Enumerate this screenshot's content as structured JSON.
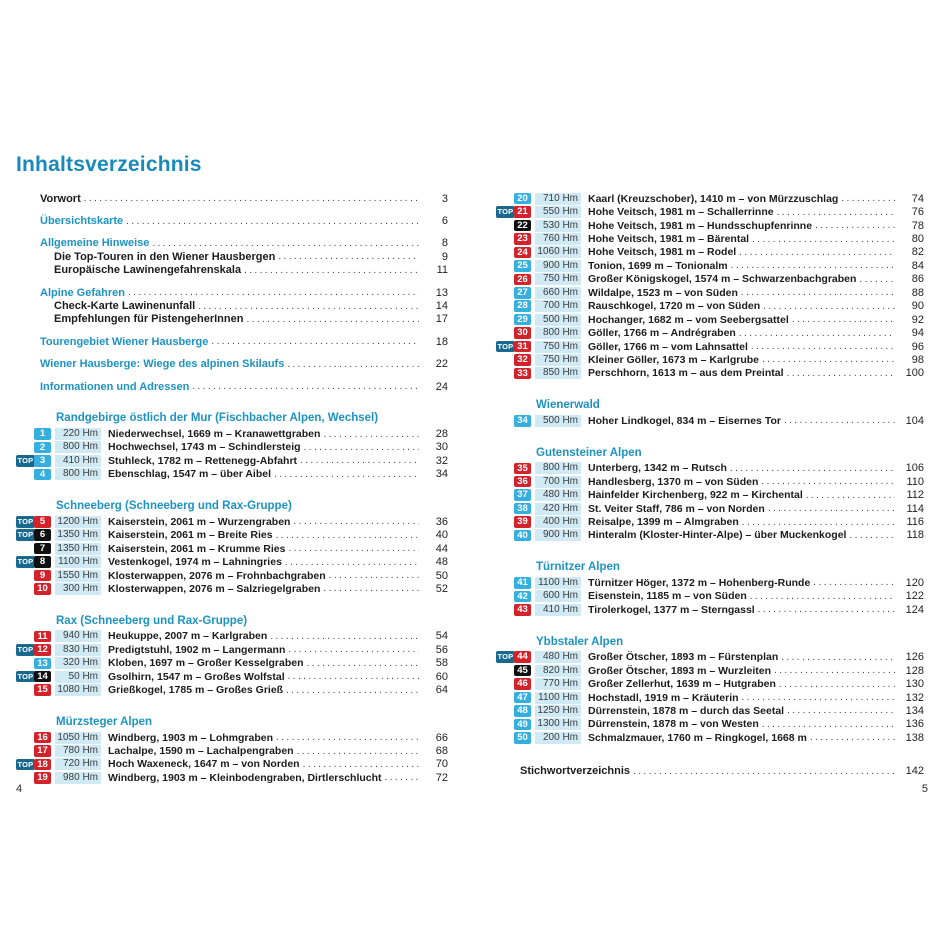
{
  "page": {
    "title": "Inhaltsverzeichnis",
    "left_page_number": "4",
    "right_page_number": "5"
  },
  "top_label": "TOP",
  "colors": {
    "accent_teal": "#1d93c4",
    "title_teal": "#1889bd",
    "badge_cyan": "#35afdf",
    "badge_red": "#d3222a",
    "badge_black": "#101010",
    "top_badge_bg": "#19698f",
    "elevation_bg": "#cfe9f5"
  },
  "front_matter_groups": [
    [
      {
        "label": "Vorwort",
        "page": "3",
        "style": "black"
      }
    ],
    [
      {
        "label": "Übersichtskarte",
        "page": "6",
        "style": "teal"
      }
    ],
    [
      {
        "label": "Allgemeine Hinweise",
        "page": "8",
        "style": "teal"
      },
      {
        "label": "Die Top-Touren in den Wiener Hausbergen",
        "page": "9",
        "style": "black",
        "indent": true
      },
      {
        "label": "Europäische Lawinengefahrenskala",
        "page": "11",
        "style": "black",
        "indent": true
      }
    ],
    [
      {
        "label": "Alpine Gefahren",
        "page": "13",
        "style": "teal"
      },
      {
        "label": "Check-Karte Lawinenunfall",
        "page": "14",
        "style": "black",
        "indent": true
      },
      {
        "label": "Empfehlungen für PistengeherInnen",
        "page": "17",
        "style": "black",
        "indent": true
      }
    ],
    [
      {
        "label": "Tourengebiet Wiener Hausberge",
        "page": "18",
        "style": "teal"
      }
    ],
    [
      {
        "label": "Wiener Hausberge: Wiege des alpinen Skilaufs",
        "page": "22",
        "style": "teal"
      }
    ],
    [
      {
        "label": "Informationen und Adressen",
        "page": "24",
        "style": "teal"
      }
    ]
  ],
  "left_sections": [
    {
      "heading": "Randgebirge östlich der Mur (Fischbacher Alpen, Wechsel)",
      "entries": [
        {
          "num": "1",
          "badge": "cyan",
          "top": false,
          "hm": "220 Hm",
          "name": "Niederwechsel, 1669 m – Kranawettgraben",
          "page": "28"
        },
        {
          "num": "2",
          "badge": "cyan",
          "top": false,
          "hm": "800 Hm",
          "name": "Hochwechsel, 1743 m – Schindlersteig",
          "page": "30"
        },
        {
          "num": "3",
          "badge": "cyan",
          "top": true,
          "hm": "410 Hm",
          "name": "Stuhleck, 1782 m – Rettenegg-Abfahrt",
          "page": "32"
        },
        {
          "num": "4",
          "badge": "cyan",
          "top": false,
          "hm": "800 Hm",
          "name": "Ebenschlag, 1547 m – über Aibel",
          "page": "34"
        }
      ]
    },
    {
      "heading": "Schneeberg (Schneeberg und Rax-Gruppe)",
      "entries": [
        {
          "num": "5",
          "badge": "red",
          "top": true,
          "hm": "1200 Hm",
          "name": "Kaiserstein, 2061 m – Wurzengraben",
          "page": "36"
        },
        {
          "num": "6",
          "badge": "black",
          "top": true,
          "hm": "1350 Hm",
          "name": "Kaiserstein, 2061 m – Breite Ries",
          "page": "40"
        },
        {
          "num": "7",
          "badge": "black",
          "top": false,
          "hm": "1350 Hm",
          "name": "Kaiserstein, 2061 m – Krumme Ries",
          "page": "44"
        },
        {
          "num": "8",
          "badge": "black",
          "top": true,
          "hm": "1100 Hm",
          "name": "Vestenkogel, 1974 m – Lahningries",
          "page": "48"
        },
        {
          "num": "9",
          "badge": "red",
          "top": false,
          "hm": "1550 Hm",
          "name": "Klosterwappen, 2076 m – Frohnbachgraben",
          "page": "50"
        },
        {
          "num": "10",
          "badge": "red",
          "top": false,
          "hm": "300 Hm",
          "name": "Klosterwappen, 2076 m – Salzriegelgraben",
          "page": "52"
        }
      ]
    },
    {
      "heading": "Rax (Schneeberg und Rax-Gruppe)",
      "entries": [
        {
          "num": "11",
          "badge": "red",
          "top": false,
          "hm": "940 Hm",
          "name": "Heukuppe, 2007 m – Karlgraben",
          "page": "54"
        },
        {
          "num": "12",
          "badge": "red",
          "top": true,
          "hm": "830 Hm",
          "name": "Predigtstuhl, 1902 m – Langermann",
          "page": "56"
        },
        {
          "num": "13",
          "badge": "cyan",
          "top": false,
          "hm": "320 Hm",
          "name": "Kloben, 1697 m – Großer Kesselgraben",
          "page": "58"
        },
        {
          "num": "14",
          "badge": "black",
          "top": true,
          "hm": "50 Hm",
          "name": "Gsolhirn, 1547 m – Großes Wolfstal",
          "page": "60"
        },
        {
          "num": "15",
          "badge": "red",
          "top": false,
          "hm": "1080 Hm",
          "name": "Grießkogel, 1785 m – Großes Grieß",
          "page": "64"
        }
      ]
    },
    {
      "heading": "Mürzsteger Alpen",
      "entries": [
        {
          "num": "16",
          "badge": "red",
          "top": false,
          "hm": "1050 Hm",
          "name": "Windberg, 1903 m – Lohmgraben",
          "page": "66"
        },
        {
          "num": "17",
          "badge": "red",
          "top": false,
          "hm": "780 Hm",
          "name": "Lachalpe, 1590 m – Lachalpengraben",
          "page": "68"
        },
        {
          "num": "18",
          "badge": "red",
          "top": true,
          "hm": "720 Hm",
          "name": "Hoch Waxeneck, 1647 m – von Norden",
          "page": "70"
        },
        {
          "num": "19",
          "badge": "red",
          "top": false,
          "hm": "980 Hm",
          "name": "Windberg, 1903 m – Kleinbodengraben, Dirtlerschlucht",
          "page": "72"
        }
      ]
    }
  ],
  "right_sections": [
    {
      "heading": null,
      "entries": [
        {
          "num": "20",
          "badge": "cyan",
          "top": false,
          "hm": "710 Hm",
          "name": "Kaarl (Kreuzschober), 1410 m – von Mürzzuschlag",
          "page": "74"
        },
        {
          "num": "21",
          "badge": "red",
          "top": true,
          "hm": "550 Hm",
          "name": "Hohe Veitsch, 1981 m – Schallerrinne",
          "page": "76"
        },
        {
          "num": "22",
          "badge": "black",
          "top": false,
          "hm": "530 Hm",
          "name": "Hohe Veitsch, 1981 m – Hundsschupfenrinne",
          "page": "78"
        },
        {
          "num": "23",
          "badge": "red",
          "top": false,
          "hm": "760 Hm",
          "name": "Hohe Veitsch, 1981 m – Bärental",
          "page": "80"
        },
        {
          "num": "24",
          "badge": "red",
          "top": false,
          "hm": "1060 Hm",
          "name": "Hohe Veitsch, 1981 m – Rodel",
          "page": "82"
        },
        {
          "num": "25",
          "badge": "cyan",
          "top": false,
          "hm": "900 Hm",
          "name": "Tonion, 1699 m – Tonionalm",
          "page": "84"
        },
        {
          "num": "26",
          "badge": "red",
          "top": false,
          "hm": "750 Hm",
          "name": "Großer Königskogel, 1574 m – Schwarzenbachgraben",
          "page": "86"
        },
        {
          "num": "27",
          "badge": "cyan",
          "top": false,
          "hm": "660 Hm",
          "name": "Wildalpe, 1523 m – von Süden",
          "page": "88"
        },
        {
          "num": "28",
          "badge": "cyan",
          "top": false,
          "hm": "700 Hm",
          "name": "Rauschkogel, 1720 m – von Süden",
          "page": "90"
        },
        {
          "num": "29",
          "badge": "cyan",
          "top": false,
          "hm": "500 Hm",
          "name": "Hochanger, 1682 m – vom Seebergsattel",
          "page": "92"
        },
        {
          "num": "30",
          "badge": "red",
          "top": false,
          "hm": "800 Hm",
          "name": "Göller, 1766 m – Andrégraben",
          "page": "94"
        },
        {
          "num": "31",
          "badge": "red",
          "top": true,
          "hm": "750 Hm",
          "name": "Göller, 1766 m – vom Lahnsattel",
          "page": "96"
        },
        {
          "num": "32",
          "badge": "red",
          "top": false,
          "hm": "750 Hm",
          "name": "Kleiner Göller, 1673 m – Karlgrube",
          "page": "98"
        },
        {
          "num": "33",
          "badge": "red",
          "top": false,
          "hm": "850 Hm",
          "name": "Perschhorn, 1613 m – aus dem Preintal",
          "page": "100"
        }
      ]
    },
    {
      "heading": "Wienerwald",
      "entries": [
        {
          "num": "34",
          "badge": "cyan",
          "top": false,
          "hm": "500 Hm",
          "name": "Hoher Lindkogel, 834 m – Eisernes Tor",
          "page": "104"
        }
      ]
    },
    {
      "heading": "Gutensteiner Alpen",
      "entries": [
        {
          "num": "35",
          "badge": "red",
          "top": false,
          "hm": "800 Hm",
          "name": "Unterberg, 1342 m – Rutsch",
          "page": "106"
        },
        {
          "num": "36",
          "badge": "red",
          "top": false,
          "hm": "700 Hm",
          "name": "Handlesberg, 1370 m – von Süden",
          "page": "110"
        },
        {
          "num": "37",
          "badge": "cyan",
          "top": false,
          "hm": "480 Hm",
          "name": "Hainfelder Kirchenberg, 922 m – Kirchental",
          "page": "112"
        },
        {
          "num": "38",
          "badge": "cyan",
          "top": false,
          "hm": "420 Hm",
          "name": "St. Veiter Staff, 786 m – von Norden",
          "page": "114"
        },
        {
          "num": "39",
          "badge": "red",
          "top": false,
          "hm": "400 Hm",
          "name": "Reisalpe, 1399 m – Almgraben",
          "page": "116"
        },
        {
          "num": "40",
          "badge": "cyan",
          "top": false,
          "hm": "900 Hm",
          "name": "Hinteralm (Kloster-Hinter-Alpe) – über Muckenkogel",
          "page": "118"
        }
      ]
    },
    {
      "heading": "Türnitzer Alpen",
      "entries": [
        {
          "num": "41",
          "badge": "cyan",
          "top": false,
          "hm": "1100 Hm",
          "name": "Türnitzer Höger, 1372 m – Hohenberg-Runde",
          "page": "120"
        },
        {
          "num": "42",
          "badge": "cyan",
          "top": false,
          "hm": "600 Hm",
          "name": "Eisenstein, 1185 m – von Süden",
          "page": "122"
        },
        {
          "num": "43",
          "badge": "red",
          "top": false,
          "hm": "410 Hm",
          "name": "Tirolerkogel, 1377 m – Sterngassl",
          "page": "124"
        }
      ]
    },
    {
      "heading": "Ybbstaler Alpen",
      "entries": [
        {
          "num": "44",
          "badge": "red",
          "top": true,
          "hm": "480 Hm",
          "name": "Großer Ötscher, 1893 m – Fürstenplan",
          "page": "126"
        },
        {
          "num": "45",
          "badge": "black",
          "top": false,
          "hm": "820 Hm",
          "name": "Großer Ötscher, 1893 m – Wurzleiten",
          "page": "128"
        },
        {
          "num": "46",
          "badge": "red",
          "top": false,
          "hm": "770 Hm",
          "name": "Großer Zellerhut, 1639 m – Hutgraben",
          "page": "130"
        },
        {
          "num": "47",
          "badge": "cyan",
          "top": false,
          "hm": "1100 Hm",
          "name": "Hochstadl, 1919 m – Kräuterin",
          "page": "132"
        },
        {
          "num": "48",
          "badge": "cyan",
          "top": false,
          "hm": "1250 Hm",
          "name": "Dürrenstein, 1878 m – durch das Seetal",
          "page": "134"
        },
        {
          "num": "49",
          "badge": "cyan",
          "top": false,
          "hm": "1300 Hm",
          "name": "Dürrenstein, 1878 m – von Westen",
          "page": "136"
        },
        {
          "num": "50",
          "badge": "cyan",
          "top": false,
          "hm": "200 Hm",
          "name": "Schmalzmauer, 1760 m – Ringkogel, 1668 m",
          "page": "138"
        }
      ]
    }
  ],
  "back_matter": {
    "label": "Stichwortverzeichnis",
    "page": "142"
  }
}
